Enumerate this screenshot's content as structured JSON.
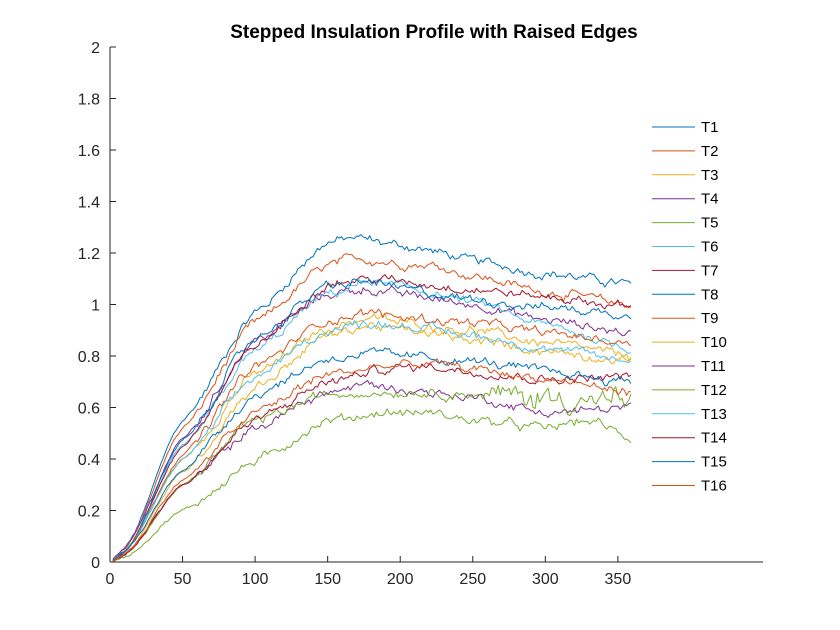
{
  "chart_data": {
    "type": "line",
    "title": "Stepped Insulation Profile with Raised Edges",
    "xlabel": "",
    "ylabel": "",
    "xlim": [
      0,
      450
    ],
    "ylim": [
      0,
      2
    ],
    "xticks": [
      0,
      50,
      100,
      150,
      200,
      250,
      300,
      350
    ],
    "yticks": [
      0,
      0.2,
      0.4,
      0.6,
      0.8,
      1,
      1.2,
      1.4,
      1.6,
      1.8,
      2
    ],
    "ytick_labels": [
      "0",
      "0.2",
      "0.4",
      "0.6",
      "0.8",
      "1",
      "1.2",
      "1.4",
      "1.6",
      "1.8",
      "2"
    ],
    "xtick_labels": [
      "0",
      "50",
      "100",
      "150",
      "200",
      "250",
      "300",
      "350"
    ],
    "legend_position": "right",
    "grid": false,
    "x_range": [
      0,
      360
    ],
    "series": [
      {
        "name": "T1",
        "color": "#0072BD",
        "points": [
          [
            0,
            0
          ],
          [
            10,
            0.05
          ],
          [
            50,
            0.55
          ],
          [
            100,
            0.97
          ],
          [
            150,
            1.24
          ],
          [
            170,
            1.26
          ],
          [
            200,
            1.23
          ],
          [
            220,
            1.21
          ],
          [
            250,
            1.17
          ],
          [
            300,
            1.12
          ],
          [
            360,
            1.08
          ]
        ]
      },
      {
        "name": "T2",
        "color": "#D95319",
        "points": [
          [
            0,
            0
          ],
          [
            10,
            0.05
          ],
          [
            50,
            0.52
          ],
          [
            100,
            0.93
          ],
          [
            150,
            1.15
          ],
          [
            170,
            1.18
          ],
          [
            200,
            1.16
          ],
          [
            225,
            1.15
          ],
          [
            250,
            1.11
          ],
          [
            300,
            1.05
          ],
          [
            360,
            1.0
          ]
        ]
      },
      {
        "name": "T3",
        "color": "#EDB120",
        "points": [
          [
            0,
            0
          ],
          [
            10,
            0.04
          ],
          [
            50,
            0.4
          ],
          [
            100,
            0.73
          ],
          [
            150,
            0.91
          ],
          [
            180,
            0.95
          ],
          [
            200,
            0.93
          ],
          [
            250,
            0.9
          ],
          [
            300,
            0.85
          ],
          [
            360,
            0.8
          ]
        ]
      },
      {
        "name": "T4",
        "color": "#7E2F8E",
        "points": [
          [
            0,
            0
          ],
          [
            10,
            0.05
          ],
          [
            50,
            0.48
          ],
          [
            100,
            0.86
          ],
          [
            150,
            1.04
          ],
          [
            175,
            1.06
          ],
          [
            200,
            1.04
          ],
          [
            250,
            1.0
          ],
          [
            300,
            0.94
          ],
          [
            360,
            0.89
          ]
        ]
      },
      {
        "name": "T5",
        "color": "#77AC30",
        "points": [
          [
            0,
            0
          ],
          [
            10,
            0.02
          ],
          [
            50,
            0.2
          ],
          [
            100,
            0.39
          ],
          [
            150,
            0.55
          ],
          [
            190,
            0.58
          ],
          [
            220,
            0.58
          ],
          [
            250,
            0.55
          ],
          [
            300,
            0.52
          ],
          [
            330,
            0.55
          ],
          [
            360,
            0.48
          ]
        ]
      },
      {
        "name": "T6",
        "color": "#4DBEEE",
        "points": [
          [
            0,
            0
          ],
          [
            10,
            0.04
          ],
          [
            50,
            0.45
          ],
          [
            100,
            0.82
          ],
          [
            150,
            1.04
          ],
          [
            180,
            1.09
          ],
          [
            200,
            1.07
          ],
          [
            250,
            1.01
          ],
          [
            300,
            0.92
          ],
          [
            360,
            0.83
          ]
        ]
      },
      {
        "name": "T7",
        "color": "#A2142F",
        "points": [
          [
            0,
            0
          ],
          [
            10,
            0.04
          ],
          [
            50,
            0.45
          ],
          [
            100,
            0.84
          ],
          [
            150,
            1.08
          ],
          [
            180,
            1.1
          ],
          [
            200,
            1.09
          ],
          [
            250,
            1.06
          ],
          [
            300,
            1.03
          ],
          [
            360,
            0.99
          ]
        ]
      },
      {
        "name": "T8",
        "color": "#0072BD",
        "points": [
          [
            0,
            0
          ],
          [
            10,
            0.04
          ],
          [
            50,
            0.47
          ],
          [
            100,
            0.87
          ],
          [
            150,
            1.07
          ],
          [
            180,
            1.09
          ],
          [
            200,
            1.06
          ],
          [
            250,
            1.02
          ],
          [
            300,
            0.99
          ],
          [
            360,
            0.96
          ]
        ]
      },
      {
        "name": "T9",
        "color": "#D95319",
        "points": [
          [
            0,
            0
          ],
          [
            10,
            0.04
          ],
          [
            50,
            0.42
          ],
          [
            100,
            0.76
          ],
          [
            150,
            0.94
          ],
          [
            180,
            0.97
          ],
          [
            200,
            0.95
          ],
          [
            250,
            0.93
          ],
          [
            300,
            0.89
          ],
          [
            360,
            0.85
          ]
        ]
      },
      {
        "name": "T10",
        "color": "#EDB120",
        "points": [
          [
            0,
            0
          ],
          [
            10,
            0.03
          ],
          [
            50,
            0.35
          ],
          [
            100,
            0.68
          ],
          [
            150,
            0.88
          ],
          [
            180,
            0.92
          ],
          [
            200,
            0.9
          ],
          [
            250,
            0.86
          ],
          [
            300,
            0.82
          ],
          [
            360,
            0.78
          ]
        ]
      },
      {
        "name": "T11",
        "color": "#7E2F8E",
        "points": [
          [
            0,
            0
          ],
          [
            10,
            0.03
          ],
          [
            50,
            0.3
          ],
          [
            100,
            0.52
          ],
          [
            150,
            0.66
          ],
          [
            180,
            0.69
          ],
          [
            200,
            0.67
          ],
          [
            250,
            0.64
          ],
          [
            300,
            0.58
          ],
          [
            360,
            0.6
          ]
        ]
      },
      {
        "name": "T12",
        "color": "#77AC30",
        "points": [
          [
            0,
            0
          ],
          [
            10,
            0.03
          ],
          [
            50,
            0.3
          ],
          [
            100,
            0.55
          ],
          [
            150,
            0.65
          ],
          [
            180,
            0.66
          ],
          [
            210,
            0.66
          ],
          [
            250,
            0.65
          ],
          [
            300,
            0.64
          ],
          [
            360,
            0.62
          ]
        ]
      },
      {
        "name": "T13",
        "color": "#4DBEEE",
        "points": [
          [
            0,
            0
          ],
          [
            10,
            0.04
          ],
          [
            50,
            0.4
          ],
          [
            100,
            0.72
          ],
          [
            150,
            0.9
          ],
          [
            180,
            0.93
          ],
          [
            200,
            0.92
          ],
          [
            250,
            0.88
          ],
          [
            300,
            0.83
          ],
          [
            360,
            0.78
          ]
        ]
      },
      {
        "name": "T14",
        "color": "#A2142F",
        "points": [
          [
            0,
            0
          ],
          [
            10,
            0.03
          ],
          [
            50,
            0.3
          ],
          [
            100,
            0.55
          ],
          [
            150,
            0.7
          ],
          [
            190,
            0.75
          ],
          [
            220,
            0.76
          ],
          [
            250,
            0.74
          ],
          [
            300,
            0.71
          ],
          [
            360,
            0.72
          ]
        ]
      },
      {
        "name": "T15",
        "color": "#0072BD",
        "points": [
          [
            0,
            0
          ],
          [
            10,
            0.04
          ],
          [
            50,
            0.36
          ],
          [
            100,
            0.65
          ],
          [
            150,
            0.79
          ],
          [
            180,
            0.81
          ],
          [
            200,
            0.8
          ],
          [
            250,
            0.78
          ],
          [
            300,
            0.74
          ],
          [
            360,
            0.7
          ]
        ]
      },
      {
        "name": "T16",
        "color": "#D95319",
        "points": [
          [
            0,
            0
          ],
          [
            10,
            0.03
          ],
          [
            50,
            0.32
          ],
          [
            100,
            0.58
          ],
          [
            150,
            0.73
          ],
          [
            190,
            0.76
          ],
          [
            220,
            0.77
          ],
          [
            250,
            0.75
          ],
          [
            300,
            0.71
          ],
          [
            360,
            0.66
          ]
        ]
      }
    ]
  }
}
